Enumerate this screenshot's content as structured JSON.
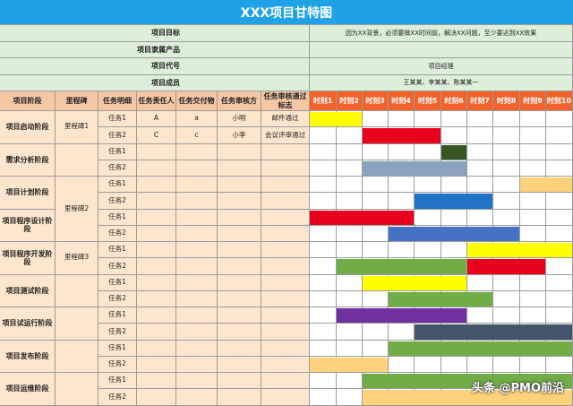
{
  "title": "XXX项目甘特图",
  "info_rows": [
    {
      "label": "项目目标",
      "value": "因为XX背景，必须要做XX时间前，解决XX问题，至少要达到XX效果"
    },
    {
      "label": "项目隶属产品",
      "value": ""
    },
    {
      "label": "项目代号",
      "value": "项目经理"
    },
    {
      "label": "项目成员",
      "value": "王某某、李某某、陈某某一"
    }
  ],
  "headers": [
    "项目阶段",
    "里程碑",
    "任务明细",
    "任务责任人",
    "任务交付物",
    "任务审核方",
    "任务审核通过标志"
  ],
  "time_headers": [
    "时刻1",
    "时刻2",
    "时刻3",
    "时刻4",
    "时刻5",
    "时刻6",
    "时刻7",
    "时刻8",
    "时刻9",
    "时刻10"
  ],
  "stages": [
    "项目启动阶段",
    "需求分析阶段",
    "项目计划阶段",
    "项目程序设计阶段",
    "项目程序开发阶段",
    "项目测试阶段",
    "项目试运行阶段",
    "项目发布阶段",
    "项目运维阶段"
  ],
  "milestones": [
    "里程碑1",
    "里程碑2",
    "里程碑3"
  ],
  "rows": [
    {
      "task": "任务1",
      "owner": "A",
      "deliverable": "a",
      "reviewer": "小明",
      "pass_mark": "邮件通过"
    },
    {
      "task": "任务2",
      "owner": "C",
      "deliverable": "c",
      "reviewer": "小李",
      "pass_mark": "会议评审通过"
    },
    {
      "task": "任务1",
      "owner": "",
      "deliverable": "",
      "reviewer": "",
      "pass_mark": ""
    },
    {
      "task": "任务2",
      "owner": "",
      "deliverable": "",
      "reviewer": "",
      "pass_mark": ""
    },
    {
      "task": "任务1",
      "owner": "",
      "deliverable": "",
      "reviewer": "",
      "pass_mark": ""
    },
    {
      "task": "任务2",
      "owner": "",
      "deliverable": "",
      "reviewer": "",
      "pass_mark": ""
    },
    {
      "task": "任务1",
      "owner": "",
      "deliverable": "",
      "reviewer": "",
      "pass_mark": ""
    },
    {
      "task": "任务2",
      "owner": "",
      "deliverable": "",
      "reviewer": "",
      "pass_mark": ""
    },
    {
      "task": "任务1",
      "owner": "",
      "deliverable": "",
      "reviewer": "",
      "pass_mark": ""
    },
    {
      "task": "任务2",
      "owner": "",
      "deliverable": "",
      "reviewer": "",
      "pass_mark": ""
    },
    {
      "task": "任务1",
      "owner": "",
      "deliverable": "",
      "reviewer": "",
      "pass_mark": ""
    },
    {
      "task": "任务2",
      "owner": "",
      "deliverable": "",
      "reviewer": "",
      "pass_mark": ""
    },
    {
      "task": "任务1",
      "owner": "",
      "deliverable": "",
      "reviewer": "",
      "pass_mark": ""
    },
    {
      "task": "任务2",
      "owner": "",
      "deliverable": "",
      "reviewer": "",
      "pass_mark": ""
    },
    {
      "task": "任务1",
      "owner": "",
      "deliverable": "",
      "reviewer": "",
      "pass_mark": ""
    },
    {
      "task": "任务2",
      "owner": "",
      "deliverable": "",
      "reviewer": "",
      "pass_mark": ""
    },
    {
      "task": "任务1",
      "owner": "",
      "deliverable": "",
      "reviewer": "",
      "pass_mark": ""
    },
    {
      "task": "任务2",
      "owner": "",
      "deliverable": "",
      "reviewer": "",
      "pass_mark": ""
    }
  ],
  "bars": [
    {
      "row": 0,
      "start": 1,
      "end": 2,
      "color": "#ffff00"
    },
    {
      "row": 1,
      "start": 3,
      "end": 5,
      "color": "#e8001c"
    },
    {
      "row": 2,
      "start": 6,
      "end": 6,
      "color": "#375623"
    },
    {
      "row": 3,
      "start": 3,
      "end": 6,
      "color": "#8aa2c2"
    },
    {
      "row": 4,
      "start": 9,
      "end": 10,
      "color": "#fdd27a"
    },
    {
      "row": 5,
      "start": 5,
      "end": 7,
      "color": "#1f72c4"
    },
    {
      "row": 6,
      "start": 1,
      "end": 4,
      "color": "#e8001c"
    },
    {
      "row": 7,
      "start": 4,
      "end": 8,
      "color": "#4472c4"
    },
    {
      "row": 8,
      "start": 7,
      "end": 10,
      "color": "#ffff00"
    },
    {
      "row": 9,
      "start": 2,
      "end": 6,
      "color": "#70ad47"
    },
    {
      "row": 9,
      "start": 7,
      "end": 9,
      "color": "#e8001c"
    },
    {
      "row": 10,
      "start": 3,
      "end": 6,
      "color": "#ffff00"
    },
    {
      "row": 11,
      "start": 4,
      "end": 7,
      "color": "#70ad47"
    },
    {
      "row": 12,
      "start": 2,
      "end": 6,
      "color": "#7030a0"
    },
    {
      "row": 13,
      "start": 5,
      "end": 10,
      "color": "#44546a"
    },
    {
      "row": 14,
      "start": 4,
      "end": 10,
      "color": "#70ad47"
    },
    {
      "row": 15,
      "start": 1,
      "end": 3,
      "color": "#fdd27a"
    },
    {
      "row": 16,
      "start": 3,
      "end": 10,
      "color": "#70ad47"
    },
    {
      "row": 17,
      "start": 3,
      "end": 10,
      "color": "#fdd27a"
    }
  ],
  "watermark": "头条 @PMO前沿"
}
